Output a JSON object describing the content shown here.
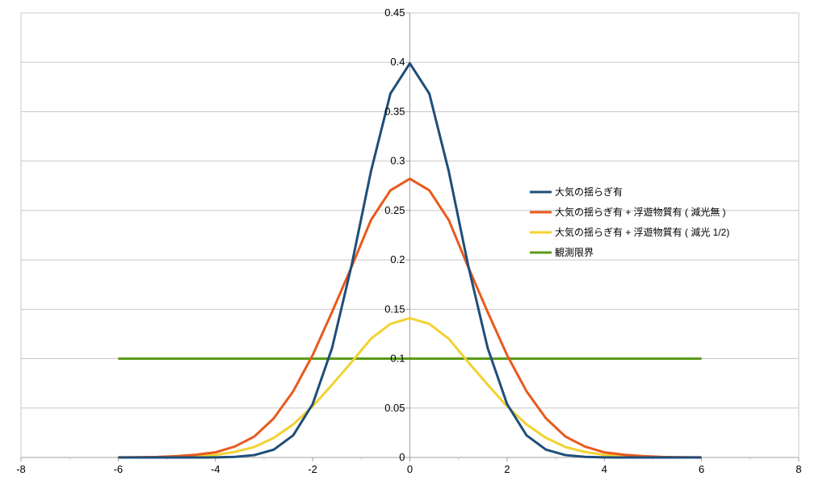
{
  "chart_data": {
    "type": "line",
    "title": "",
    "xlabel": "",
    "ylabel": "",
    "xlim": [
      -8,
      8
    ],
    "ylim": [
      0,
      0.45
    ],
    "x_ticks": [
      -8,
      -6,
      -4,
      -2,
      0,
      2,
      4,
      6,
      8
    ],
    "x_tick_labels": [
      "-8",
      "-6",
      "-4",
      "-2",
      "0",
      "2",
      "4",
      "6",
      "8"
    ],
    "y_ticks": [
      0,
      0.05,
      0.1,
      0.15,
      0.2,
      0.25,
      0.3,
      0.35,
      0.4,
      0.45
    ],
    "y_tick_labels": [
      "0",
      "0.05",
      "0.1",
      "0.15",
      "0.2",
      "0.25",
      "0.3",
      "0.35",
      "0.4",
      "0.45"
    ],
    "grid": "horizontal",
    "legend_position": "right",
    "x": [
      -6,
      -5.6,
      -5.2,
      -4.8,
      -4.4,
      -4,
      -3.6,
      -3.2,
      -2.8,
      -2.4,
      -2,
      -1.6,
      -1.2,
      -0.8,
      -0.4,
      0,
      0.4,
      0.8,
      1.2,
      1.6,
      2,
      2.4,
      2.8,
      3.2,
      3.6,
      4,
      4.4,
      4.8,
      5.2,
      5.6,
      6
    ],
    "series": [
      {
        "name": "大気の揺らぎ有",
        "color": "#1f4e79",
        "values": [
          0,
          0,
          0,
          0,
          0,
          0.0001,
          0.0006,
          0.0024,
          0.0079,
          0.0224,
          0.054,
          0.1109,
          0.1942,
          0.2897,
          0.3683,
          0.3989,
          0.3683,
          0.2897,
          0.1942,
          0.1109,
          0.054,
          0.0224,
          0.0079,
          0.0024,
          0.0006,
          0.0001,
          0,
          0,
          0,
          0,
          0
        ]
      },
      {
        "name": "大気の揺らぎ有 + 浮遊物質有 ( 減光無 )",
        "color": "#e85a1d",
        "values": [
          0.0001,
          0.0002,
          0.0005,
          0.0013,
          0.0028,
          0.0052,
          0.0111,
          0.0212,
          0.0396,
          0.067,
          0.1036,
          0.1473,
          0.1929,
          0.2404,
          0.2704,
          0.2821,
          0.2704,
          0.2404,
          0.1929,
          0.1473,
          0.1036,
          0.067,
          0.0396,
          0.0212,
          0.0111,
          0.0052,
          0.0028,
          0.0013,
          0.0005,
          0.0002,
          0.0001
        ]
      },
      {
        "name": "大気の揺らぎ有 + 浮遊物質有 ( 減光 1/2)",
        "color": "#f2d231",
        "values": [
          0.0001,
          0.0001,
          0.0003,
          0.0006,
          0.0014,
          0.0026,
          0.0056,
          0.0106,
          0.0198,
          0.0335,
          0.0518,
          0.0737,
          0.0965,
          0.1202,
          0.1352,
          0.141,
          0.1352,
          0.1202,
          0.0965,
          0.0737,
          0.0518,
          0.0335,
          0.0198,
          0.0106,
          0.0056,
          0.0026,
          0.0014,
          0.0006,
          0.0003,
          0.0001,
          0.0001
        ]
      },
      {
        "name": "観測限界",
        "color": "#5b9a1a",
        "values": [
          0.1,
          0.1,
          0.1,
          0.1,
          0.1,
          0.1,
          0.1,
          0.1,
          0.1,
          0.1,
          0.1,
          0.1,
          0.1,
          0.1,
          0.1,
          0.1,
          0.1,
          0.1,
          0.1,
          0.1,
          0.1,
          0.1,
          0.1,
          0.1,
          0.1,
          0.1,
          0.1,
          0.1,
          0.1,
          0.1,
          0.1
        ]
      }
    ]
  }
}
